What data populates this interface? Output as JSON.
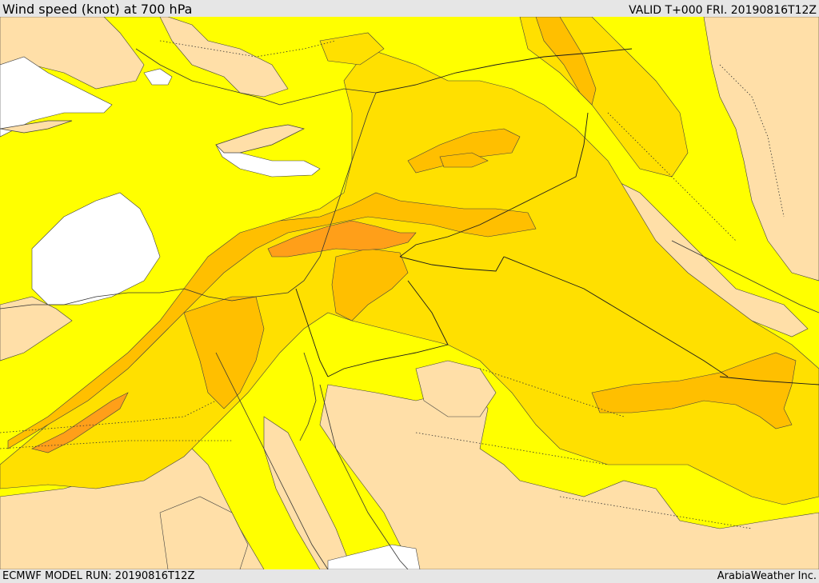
{
  "header": {
    "title": "Wind speed (knot) at 700 hPa",
    "valid": "VALID T+000 FRI. 20190816T12Z"
  },
  "footer": {
    "model_run": "ECMWF MODEL RUN: 20190816T12Z",
    "credit": "ArabiaWeather Inc."
  },
  "colors": {
    "sea_light_wind": "#ffffff",
    "level_1": "#ffdfa8",
    "level_2": "#ffff00",
    "level_3": "#ffe000",
    "level_4": "#ffbf00",
    "level_5": "#ff9f19",
    "contour": "#404040",
    "border": "#1a1a1a"
  }
}
